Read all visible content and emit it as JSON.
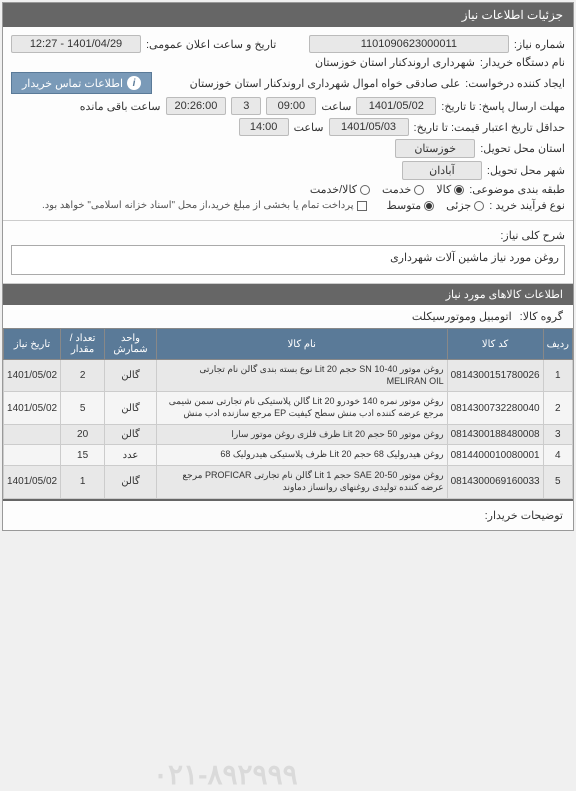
{
  "header": {
    "title": "جزئیات اطلاعات نیاز"
  },
  "general": {
    "need_number_label": "شماره نیاز:",
    "need_number": "1101090623000011",
    "announce_label": "تاریخ و ساعت اعلان عمومی:",
    "announce_value": "1401/04/29 - 12:27",
    "buyer_label": "نام دستگاه خریدار:",
    "buyer_value": "شهرداری اروندکنار استان خوزستان",
    "requester_label": "ایجاد کننده درخواست:",
    "requester_value": "علی صادقی خواه اموال شهرداری اروندکنار استان خوزستان",
    "contact_btn": "اطلاعات تماس خریدار",
    "response_deadline_label": "مهلت ارسال پاسخ: تا تاریخ:",
    "response_date": "1401/05/02",
    "response_time_label": "ساعت",
    "response_time": "09:00",
    "remaining_days": "3",
    "remaining_time": "20:26:00",
    "remaining_label": "ساعت باقی مانده",
    "validity_label": "حداقل تاریخ اعتبار قیمت: تا تاریخ:",
    "validity_date": "1401/05/03",
    "validity_time_label": "ساعت",
    "validity_time": "14:00",
    "province_label": "استان محل تحویل:",
    "province_value": "خوزستان",
    "city_label": "شهر محل تحویل:",
    "city_value": "آبادان",
    "classification_label": "طبقه بندی موضوعی:",
    "class_goods": "کالا",
    "class_service": "خدمت",
    "class_goods_service": "کالا/خدمت",
    "purchase_type_label": "نوع فرآیند خرید :",
    "type_small": "جزئی",
    "type_medium": "متوسط",
    "purchase_note": "پرداخت تمام یا بخشی از مبلغ خرید،از محل \"اسناد خزانه اسلامی\" خواهد بود.",
    "need_desc_label": "شرح کلی نیاز:",
    "need_desc": "روغن مورد نیاز ماشین آلات شهرداری"
  },
  "items_section": {
    "title": "اطلاعات کالاهای مورد نیاز",
    "group_label": "گروه کالا:",
    "group_value": "اتومبیل وموتورسیکلت"
  },
  "table": {
    "columns": [
      "ردیف",
      "کد کالا",
      "نام کالا",
      "واحد شمارش",
      "تعداد / مقدار",
      "تاریخ نیاز"
    ],
    "rows": [
      {
        "idx": "1",
        "code": "0814300151780026",
        "name": "روغن موتور 40-10 SN حجم 20 Lit نوع بسته بندی گالن نام تجارتی MELIRAN OIL",
        "unit": "گالن",
        "qty": "2",
        "date": "1401/05/02"
      },
      {
        "idx": "2",
        "code": "0814300732280040",
        "name": "روغن موتور نمره 140 خودرو 20 Lit گالن پلاستیکی نام تجارتی سمن شیمی مرجع عرضه کننده ادب منش سطح کیفیت EP مرجع سازنده ادب منش",
        "unit": "گالن",
        "qty": "5",
        "date": "1401/05/02"
      },
      {
        "idx": "3",
        "code": "0814300188480008",
        "name": "روغن موتور 50 حجم 20 Lit ظرف فلزی روغن موتور سارا",
        "unit": "گالن",
        "qty": "20",
        "date": ""
      },
      {
        "idx": "4",
        "code": "0814400010080001",
        "name": "روغن هیدرولیک 68 حجم 20 Lit ظرف پلاستیکی هیدرولیک 68",
        "unit": "عدد",
        "qty": "15",
        "date": ""
      },
      {
        "idx": "5",
        "code": "0814300069160033",
        "name": "روغن موتور 50-20 SAE حجم 1 Lit گالن نام تجارتی PROFICAR مرجع عرضه کننده تولیدی روغنهای روانساز دماوند",
        "unit": "گالن",
        "qty": "1",
        "date": "1401/05/02"
      }
    ]
  },
  "footer": {
    "buyer_notes_label": "توضیحات خریدار:"
  },
  "watermark": "۰۲۱-۸۹۲۹۹۹"
}
